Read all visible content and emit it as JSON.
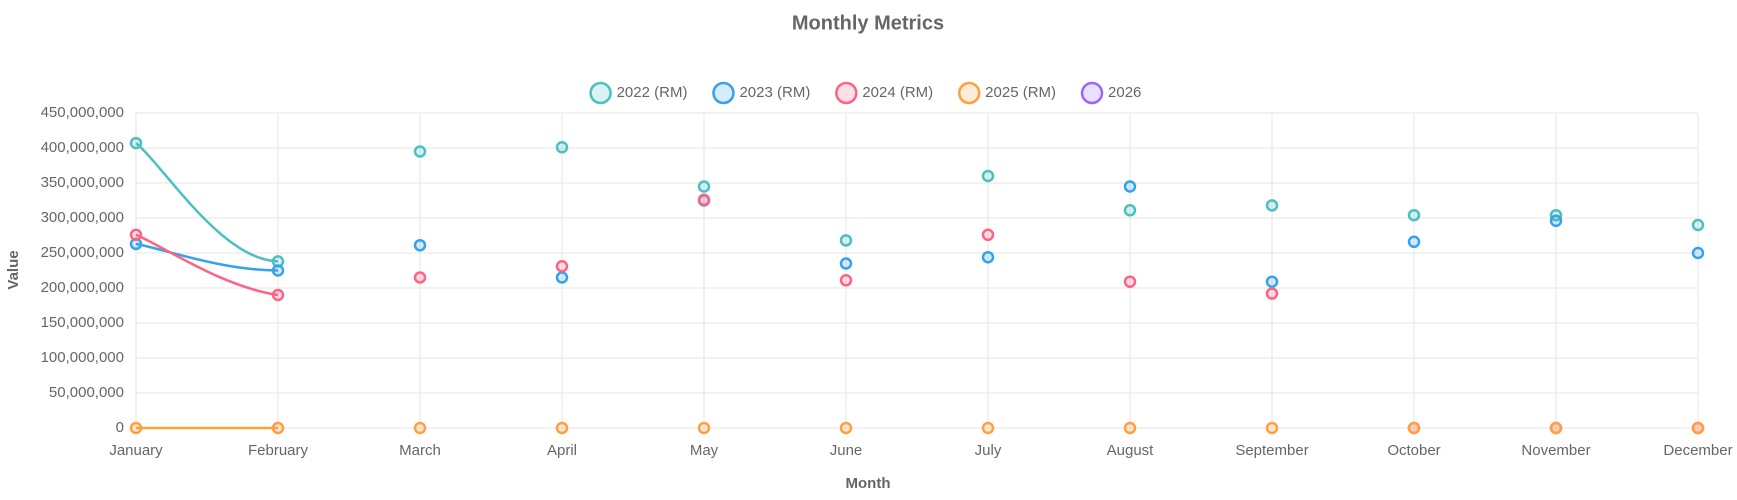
{
  "chart_data": {
    "type": "line",
    "title": "Monthly Metrics",
    "x_label": "Month",
    "y_label": "Value",
    "categories": [
      "January",
      "February",
      "March",
      "April",
      "May",
      "June",
      "July",
      "August",
      "September",
      "October",
      "November",
      "December"
    ],
    "series": [
      {
        "name": "2022 (RM)",
        "color": "#4bc0c0",
        "values": [
          407000000,
          238000000,
          395000000,
          401000000,
          345000000,
          268000000,
          360000000,
          311000000,
          318000000,
          304000000,
          304000000,
          290000000
        ]
      },
      {
        "name": "2023 (RM)",
        "color": "#36a2eb",
        "values": [
          263000000,
          225000000,
          261000000,
          215000000,
          325000000,
          235000000,
          244000000,
          345000000,
          209000000,
          266000000,
          296000000,
          250000000
        ]
      },
      {
        "name": "2024 (RM)",
        "color": "#ff6384",
        "values": [
          276000000,
          190000000,
          215000000,
          231000000,
          326000000,
          211000000,
          276000000,
          209000000,
          192000000,
          0,
          0,
          0
        ]
      },
      {
        "name": "2025 (RM)",
        "color": "#ff9f40",
        "values": [
          0,
          0,
          0,
          0,
          0,
          0,
          0,
          0,
          0,
          0,
          0,
          0
        ]
      },
      {
        "name": "2026",
        "color": "#9966ff",
        "values": [
          null,
          null,
          null,
          null,
          null,
          null,
          null,
          null,
          null,
          null,
          null,
          null
        ]
      }
    ],
    "ylim": [
      0,
      450000000
    ],
    "yticks": [
      0,
      {
        "value": 50000000,
        "label": "50,000,000"
      },
      {
        "value": 100000000,
        "label": "100,000,000"
      },
      {
        "value": 150000000,
        "label": "150,000,000"
      },
      {
        "value": 200000000,
        "label": "200,000,000"
      },
      {
        "value": 250000000,
        "label": "250,000,000"
      },
      {
        "value": 300000000,
        "label": "300,000,000"
      },
      {
        "value": 350000000,
        "label": "350,000,000"
      },
      {
        "value": 400000000,
        "label": "400,000,000"
      },
      {
        "value": 450000000,
        "label": "450,000,000"
      }
    ],
    "grid": true,
    "legend": "top"
  }
}
